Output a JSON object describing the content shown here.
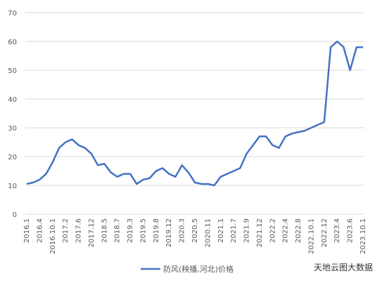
{
  "chart_data": {
    "type": "line",
    "categories": [
      "2016.1",
      null,
      "2016.4",
      null,
      "2016.10.1",
      null,
      "2017.2",
      null,
      "2017.6",
      null,
      "2017.12",
      null,
      "2018.5",
      null,
      "2018.7",
      null,
      "2019.3",
      null,
      "2019.5",
      null,
      "2019.8",
      null,
      "2019.12",
      null,
      "2020.3",
      null,
      "2020.5",
      null,
      "2020.11",
      null,
      "2021.1",
      null,
      "2021.7",
      null,
      "2021.9",
      null,
      "2021.12",
      null,
      "2022.2",
      null,
      "2022.4",
      null,
      "2022.8",
      null,
      "2022.10.1",
      null,
      "2022.12",
      null,
      "2023.4",
      null,
      "2023.6",
      null,
      "2023.10.1"
    ],
    "series": [
      {
        "name": "防风(秧播,河北)价格",
        "color": "#4472c4",
        "values": [
          10.5,
          11,
          12,
          14,
          18,
          23,
          25,
          26,
          24,
          23,
          21,
          17,
          17.5,
          14.5,
          13,
          14,
          14,
          10.5,
          12,
          12.5,
          15,
          16,
          14,
          13,
          17,
          14.5,
          11,
          10.5,
          10.5,
          10,
          13,
          14,
          15,
          16,
          21,
          24,
          27,
          27,
          24,
          23,
          27,
          28,
          28.5,
          29,
          30,
          31,
          32,
          58,
          60,
          58,
          50,
          58,
          58
        ]
      }
    ],
    "ylim": [
      0,
      70
    ],
    "yticks": [
      0,
      10,
      20,
      30,
      40,
      50,
      60,
      70
    ],
    "grid": true,
    "legend": "bottom",
    "watermark": "天地云图大数据"
  }
}
